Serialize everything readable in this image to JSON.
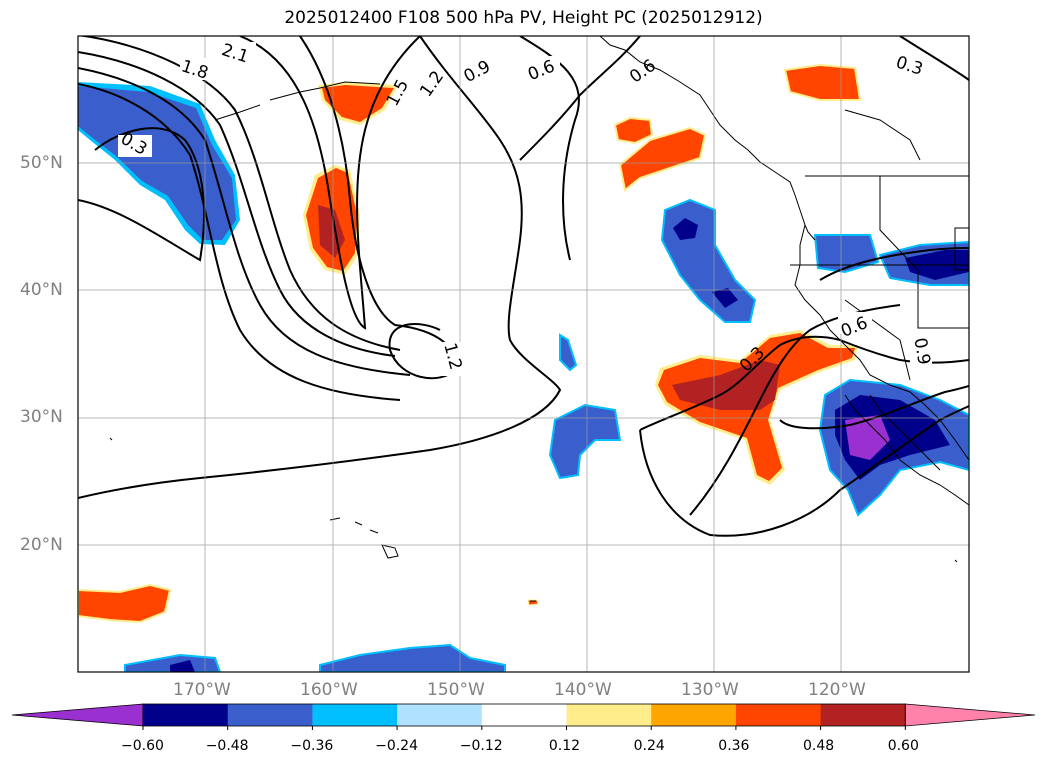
{
  "title": "2025012400 F108 500 hPa PV, Height PC (2025012912)",
  "lat_labels": [
    "50°N",
    "40°N",
    "30°N",
    "20°N"
  ],
  "lon_labels": [
    "170°W",
    "160°W",
    "150°W",
    "140°W",
    "130°W",
    "120°W"
  ],
  "contour_labels": [
    "2.1",
    "1.8",
    "1.5",
    "1.2",
    "0.9",
    "0.6",
    "0.6",
    "0.3",
    "0.3",
    "1.2",
    "0.3",
    "0.6",
    "0.9"
  ],
  "colorbar": {
    "ticks": [
      "−0.60",
      "−0.48",
      "−0.36",
      "−0.24",
      "−0.12",
      "0.12",
      "0.24",
      "0.36",
      "0.48",
      "0.60"
    ],
    "colors": [
      "#9b30d0",
      "#00008b",
      "#3a5fcd",
      "#00bfff",
      "#b0e2ff",
      "#ffffff",
      "#ffec8b",
      "#ffa500",
      "#ff4500",
      "#b22222",
      "#ff82ab"
    ]
  },
  "fill_colors": {
    "neg_light": "#00bfff",
    "neg_mid": "#3a5fcd",
    "neg_dark": "#00008b",
    "neg_extreme": "#9b30d0",
    "pos_light": "#ffec8b",
    "pos_mid": "#ff4500",
    "pos_dark": "#b22222"
  }
}
